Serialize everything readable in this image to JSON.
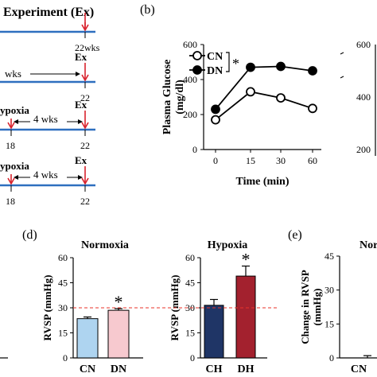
{
  "panel_a": {
    "header": "Experiment (Ex)",
    "rows": [
      {
        "top_label": "",
        "mid_label": "",
        "ex_label": "",
        "end_label": "22wks"
      },
      {
        "top_label": "",
        "mid_label": "wks",
        "ex_label": "Ex",
        "end_label": "22"
      },
      {
        "top_label": "ypoxia",
        "mid_label": "4 wks",
        "ex_label": "Ex",
        "start_label": "18",
        "end_label": "22"
      },
      {
        "top_label": "ypoxia",
        "mid_label": "4 wks",
        "ex_label": "Ex",
        "start_label": "18",
        "end_label": "22"
      }
    ],
    "colors": {
      "line": "#2e6fbf",
      "arrow": "#d9232d"
    }
  },
  "panel_b": {
    "letter": "(b)",
    "legend_star": "*"
  },
  "panel_d": {
    "letter": "(d)",
    "reference_value": 30,
    "reference_color": "#e8332a"
  },
  "panel_e": {
    "letter": "(e)",
    "title_fragment": "Nor"
  },
  "chart_data": [
    {
      "type": "line",
      "xlabel": "Time (min)",
      "ylabel": "Plasma Glucose (mg/dl)",
      "x": [
        0,
        15,
        30,
        60
      ],
      "ylim": [
        0,
        600
      ],
      "yticks": [
        0,
        200,
        400,
        600
      ],
      "series": [
        {
          "name": "CN",
          "marker": "open",
          "values": [
            170,
            330,
            295,
            235
          ],
          "errors": [
            8,
            12,
            10,
            15
          ]
        },
        {
          "name": "DN",
          "marker": "filled",
          "values": [
            230,
            470,
            475,
            450
          ],
          "errors": [
            10,
            20,
            12,
            20
          ]
        }
      ]
    },
    {
      "type": "line",
      "partial": true,
      "ylim": [
        0,
        600
      ],
      "yticks": [
        200,
        400,
        600
      ]
    },
    {
      "type": "bar",
      "title": "Normoxia",
      "ylabel": "RVSP (mmHg)",
      "categories": [
        "CN",
        "DN"
      ],
      "values": [
        23.5,
        28.5
      ],
      "errors": [
        1,
        1
      ],
      "colors": [
        "#aed4f0",
        "#f7c9cf"
      ],
      "annotations": [
        "",
        "*"
      ],
      "ylim": [
        0,
        60
      ],
      "yticks": [
        0,
        15,
        30,
        45,
        60
      ]
    },
    {
      "type": "bar",
      "title": "Hypoxia",
      "ylabel": "RVSP (mmHg)",
      "categories": [
        "CH",
        "DH"
      ],
      "values": [
        31.5,
        49
      ],
      "errors": [
        3.5,
        6
      ],
      "colors": [
        "#1f3566",
        "#a3212e"
      ],
      "annotations": [
        "",
        "*"
      ],
      "ylim": [
        0,
        60
      ],
      "yticks": [
        0,
        15,
        30,
        45,
        60
      ]
    },
    {
      "type": "bar",
      "partial": true,
      "ylabel": "Change in RVSP (mmHg)",
      "categories": [
        "CN"
      ],
      "values": [
        0
      ],
      "errors": [
        1
      ],
      "ylim": [
        0,
        45
      ],
      "yticks": [
        0,
        15,
        30,
        45
      ]
    }
  ]
}
